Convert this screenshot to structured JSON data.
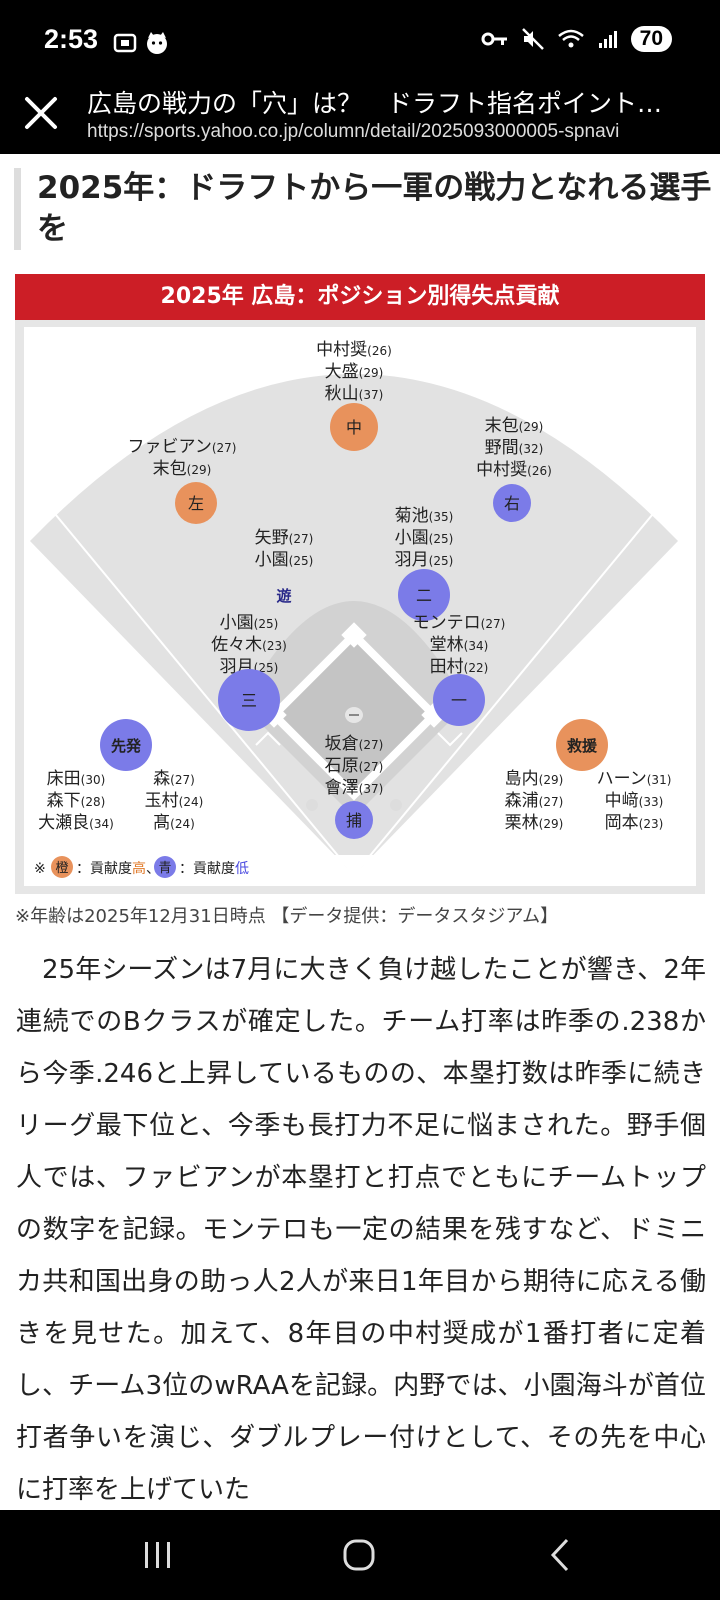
{
  "status_bar": {
    "time": "2:53",
    "battery": "70"
  },
  "url_bar": {
    "title": "広島の戦力の「穴」は？　ドラフト指名ポイント…",
    "url": "https://sports.yahoo.co.jp/column/detail/2025093000005-spnavi"
  },
  "heading": "2025年：ドラフトから一軍の戦力となれる選手を",
  "graphic": {
    "banner": "2025年 広島：ポジション別得失点貢献",
    "positions": [
      {
        "label": "中",
        "color": "orange",
        "players": [
          "中村奨(26)",
          "大盛(29)",
          "秋山(37)"
        ]
      },
      {
        "label": "左",
        "color": "orange",
        "players": [
          "ファビアン(27)",
          "末包(29)"
        ]
      },
      {
        "label": "右",
        "color": "blue",
        "players": [
          "末包(29)",
          "野間(32)",
          "中村奨(26)"
        ]
      },
      {
        "label": "遊",
        "color": "none",
        "players": [
          "矢野(27)",
          "小園(25)"
        ]
      },
      {
        "label": "二",
        "color": "blue",
        "players": [
          "菊池(35)",
          "小園(25)",
          "羽月(25)"
        ]
      },
      {
        "label": "三",
        "color": "blue",
        "players": [
          "小園(25)",
          "佐々木(23)",
          "羽月(25)"
        ]
      },
      {
        "label": "一",
        "color": "blue",
        "players": [
          "モンテロ(27)",
          "堂林(34)",
          "田村(22)"
        ]
      },
      {
        "label": "捕",
        "color": "blue",
        "players": [
          "坂倉(27)",
          "石原(27)",
          "會澤(37)"
        ]
      }
    ],
    "starters": {
      "label": "先発",
      "color": "blue",
      "col1": [
        "床田(30)",
        "森下(28)",
        "大瀬良(34)"
      ],
      "col2": [
        "森(27)",
        "玉村(24)",
        "髙(24)"
      ]
    },
    "relievers": {
      "label": "救援",
      "color": "orange",
      "col1": [
        "島内(29)",
        "森浦(27)",
        "栗林(29)"
      ],
      "col2": [
        "ハーン(31)",
        "中﨑(33)",
        "岡本(23)"
      ]
    },
    "legend": {
      "prefix": "※",
      "orange_dot": "橙",
      "orange_text": "：貢献度",
      "orange_level": "高",
      "separator": "、",
      "blue_dot": "青",
      "blue_text": "：貢献度",
      "blue_level": "低"
    },
    "colors": {
      "orange": "#e8925c",
      "blue": "#7b7be8",
      "banner": "#cc1e26"
    }
  },
  "caption": "※年齢は2025年12月31日時点 【データ提供：データスタジアム】",
  "body": "25年シーズンは7月に大きく負け越したことが響き、2年連続でのBクラスが確定した。チーム打率は昨季の.238から今季.246と上昇しているものの、本塁打数は昨季に続きリーグ最下位と、今季も長打力不足に悩まされた。野手個人では、ファビアンが本塁打と打点でともにチームトップの数字を記録。モンテロも一定の結果を残すなど、ドミニカ共和国出身の助っ人2人が来日1年目から期待に応える働きを見せた。加えて、8年目の中村奨成が1番打者に定着し、チーム3位のwRAAを記録。内野では、小園海斗が首位打者争いを演じ、ダブルプレー付けとして、その先を中心に打率を上げていた"
}
